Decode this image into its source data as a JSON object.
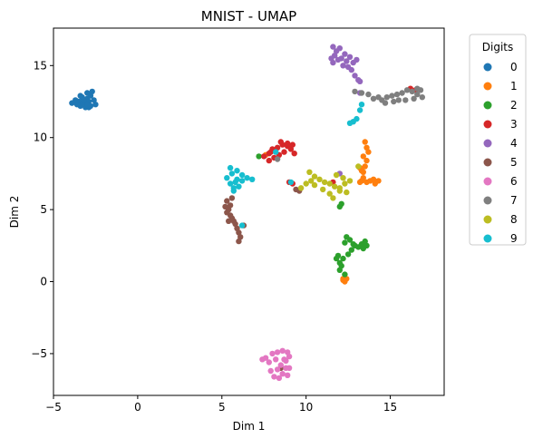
{
  "chart_data": {
    "type": "scatter",
    "title": "MNIST - UMAP",
    "xlabel": "Dim 1",
    "ylabel": "Dim 2",
    "xlim": [
      -5,
      18.2
    ],
    "ylim": [
      -7.9,
      17.6
    ],
    "xticks": [
      -5,
      0,
      5,
      10,
      15
    ],
    "yticks": [
      -5,
      0,
      5,
      10,
      15
    ],
    "grid": false,
    "legend": {
      "title": "Digits",
      "placement": "outside-right"
    },
    "series": [
      {
        "name": "0",
        "color": "#1f77b4",
        "points": [
          [
            -3.5,
            12.5
          ],
          [
            -3.3,
            12.8
          ],
          [
            -3.0,
            13.1
          ],
          [
            -2.8,
            12.9
          ],
          [
            -2.6,
            12.6
          ],
          [
            -2.8,
            12.2
          ],
          [
            -3.1,
            12.1
          ],
          [
            -3.4,
            12.2
          ],
          [
            -3.9,
            12.4
          ],
          [
            -3.7,
            12.6
          ],
          [
            -3.2,
            12.4
          ],
          [
            -2.9,
            12.5
          ],
          [
            -2.7,
            13.2
          ],
          [
            -3.0,
            12.7
          ],
          [
            -3.4,
            12.9
          ],
          [
            -3.6,
            12.3
          ],
          [
            -2.5,
            12.3
          ],
          [
            -2.9,
            12.1
          ],
          [
            -3.2,
            12.6
          ],
          [
            -3.0,
            12.3
          ]
        ]
      },
      {
        "name": "1",
        "color": "#ff7f0e",
        "points": [
          [
            13.5,
            9.7
          ],
          [
            13.6,
            9.3
          ],
          [
            13.7,
            9.0
          ],
          [
            13.4,
            8.7
          ],
          [
            13.6,
            8.4
          ],
          [
            13.5,
            8.0
          ],
          [
            13.4,
            7.6
          ],
          [
            13.3,
            7.0
          ],
          [
            13.6,
            6.9
          ],
          [
            13.8,
            7.0
          ],
          [
            14.1,
            6.8
          ],
          [
            14.3,
            7.0
          ],
          [
            13.2,
            6.9
          ],
          [
            13.4,
            7.2
          ],
          [
            14.0,
            7.1
          ],
          [
            12.2,
            0.1
          ],
          [
            12.4,
            0.2
          ],
          [
            12.3,
            0.0
          ],
          [
            12.2,
            0.2
          ],
          [
            13.3,
            7.7
          ],
          [
            7.6,
            8.8
          ],
          [
            13.2,
            7.9
          ]
        ]
      },
      {
        "name": "2",
        "color": "#2ca02c",
        "points": [
          [
            13.3,
            2.6
          ],
          [
            13.5,
            2.8
          ],
          [
            13.1,
            2.4
          ],
          [
            13.4,
            2.3
          ],
          [
            12.9,
            2.5
          ],
          [
            12.6,
            2.9
          ],
          [
            12.4,
            3.1
          ],
          [
            12.3,
            2.7
          ],
          [
            12.7,
            2.2
          ],
          [
            12.5,
            1.9
          ],
          [
            12.2,
            1.6
          ],
          [
            12.0,
            1.3
          ],
          [
            11.8,
            1.6
          ],
          [
            12.1,
            1.1
          ],
          [
            12.3,
            0.5
          ],
          [
            12.0,
            0.8
          ],
          [
            12.8,
            2.6
          ],
          [
            13.6,
            2.5
          ],
          [
            12.0,
            5.2
          ],
          [
            12.1,
            5.4
          ],
          [
            7.2,
            8.7
          ],
          [
            11.9,
            1.8
          ]
        ]
      },
      {
        "name": "3",
        "color": "#d62728",
        "points": [
          [
            7.5,
            8.7
          ],
          [
            7.8,
            8.9
          ],
          [
            8.0,
            9.2
          ],
          [
            8.3,
            9.3
          ],
          [
            8.6,
            9.5
          ],
          [
            8.9,
            9.4
          ],
          [
            9.1,
            9.2
          ],
          [
            9.3,
            8.9
          ],
          [
            8.7,
            9.0
          ],
          [
            8.4,
            8.8
          ],
          [
            8.1,
            8.6
          ],
          [
            7.8,
            8.4
          ],
          [
            8.9,
            9.6
          ],
          [
            9.2,
            9.5
          ],
          [
            8.5,
            9.7
          ],
          [
            7.9,
            9.0
          ],
          [
            9.0,
            6.9
          ],
          [
            9.2,
            6.8
          ],
          [
            11.6,
            6.9
          ],
          [
            16.2,
            13.4
          ],
          [
            16.5,
            13.3
          ]
        ]
      },
      {
        "name": "4",
        "color": "#9467bd",
        "points": [
          [
            11.6,
            16.3
          ],
          [
            11.8,
            16.0
          ],
          [
            11.7,
            15.7
          ],
          [
            11.9,
            15.4
          ],
          [
            11.6,
            15.2
          ],
          [
            12.1,
            15.5
          ],
          [
            12.4,
            15.3
          ],
          [
            12.6,
            15.6
          ],
          [
            12.8,
            15.2
          ],
          [
            13.0,
            15.4
          ],
          [
            12.3,
            15.8
          ],
          [
            12.0,
            16.2
          ],
          [
            12.5,
            14.9
          ],
          [
            12.7,
            14.7
          ],
          [
            12.9,
            14.3
          ],
          [
            13.1,
            14.0
          ],
          [
            11.5,
            15.5
          ],
          [
            12.2,
            15.0
          ],
          [
            13.2,
            13.9
          ],
          [
            12.0,
            7.5
          ],
          [
            13.2,
            13.1
          ]
        ]
      },
      {
        "name": "5",
        "color": "#8c564b",
        "points": [
          [
            5.2,
            5.2
          ],
          [
            5.3,
            4.8
          ],
          [
            5.5,
            4.6
          ],
          [
            5.4,
            5.0
          ],
          [
            5.6,
            4.4
          ],
          [
            5.8,
            4.0
          ],
          [
            5.9,
            3.7
          ],
          [
            6.0,
            3.4
          ],
          [
            6.1,
            3.1
          ],
          [
            5.7,
            4.2
          ],
          [
            5.5,
            5.3
          ],
          [
            5.3,
            5.6
          ],
          [
            5.6,
            5.8
          ],
          [
            5.4,
            4.2
          ],
          [
            6.0,
            2.8
          ],
          [
            6.3,
            3.9
          ],
          [
            9.4,
            6.4
          ],
          [
            9.6,
            6.3
          ],
          [
            8.5,
            -6.0
          ]
        ]
      },
      {
        "name": "6",
        "color": "#e377c2",
        "points": [
          [
            8.0,
            -5.0
          ],
          [
            8.3,
            -4.9
          ],
          [
            8.6,
            -4.8
          ],
          [
            8.9,
            -4.9
          ],
          [
            9.0,
            -5.2
          ],
          [
            8.8,
            -5.5
          ],
          [
            8.5,
            -5.8
          ],
          [
            8.3,
            -6.1
          ],
          [
            8.6,
            -6.4
          ],
          [
            8.9,
            -6.5
          ],
          [
            9.0,
            -6.0
          ],
          [
            8.1,
            -6.6
          ],
          [
            7.8,
            -5.6
          ],
          [
            7.6,
            -5.3
          ],
          [
            7.9,
            -6.2
          ],
          [
            8.4,
            -6.7
          ],
          [
            8.7,
            -5.4
          ],
          [
            8.2,
            -5.4
          ],
          [
            8.8,
            -6.0
          ],
          [
            7.4,
            -5.4
          ]
        ]
      },
      {
        "name": "7",
        "color": "#7f7f7f",
        "points": [
          [
            14.5,
            12.6
          ],
          [
            14.8,
            12.8
          ],
          [
            15.1,
            12.9
          ],
          [
            15.4,
            13.0
          ],
          [
            15.7,
            13.1
          ],
          [
            16.0,
            13.3
          ],
          [
            16.3,
            13.2
          ],
          [
            16.6,
            13.0
          ],
          [
            16.9,
            12.8
          ],
          [
            16.8,
            13.3
          ],
          [
            16.4,
            12.7
          ],
          [
            15.9,
            12.6
          ],
          [
            15.5,
            12.6
          ],
          [
            15.2,
            12.5
          ],
          [
            14.7,
            12.4
          ],
          [
            14.3,
            12.8
          ],
          [
            13.7,
            13.0
          ],
          [
            13.3,
            13.1
          ],
          [
            12.9,
            13.2
          ],
          [
            16.6,
            13.4
          ],
          [
            14.0,
            12.7
          ],
          [
            8.3,
            8.5
          ]
        ]
      },
      {
        "name": "8",
        "color": "#bcbd22",
        "points": [
          [
            10.2,
            7.6
          ],
          [
            10.5,
            7.3
          ],
          [
            10.8,
            7.1
          ],
          [
            11.1,
            6.9
          ],
          [
            11.4,
            6.8
          ],
          [
            11.7,
            6.6
          ],
          [
            12.0,
            6.5
          ],
          [
            12.3,
            6.8
          ],
          [
            12.6,
            7.0
          ],
          [
            12.2,
            7.2
          ],
          [
            11.8,
            7.4
          ],
          [
            10.5,
            6.7
          ],
          [
            10.3,
            7.0
          ],
          [
            11.0,
            6.4
          ],
          [
            12.4,
            6.2
          ],
          [
            11.6,
            5.8
          ],
          [
            11.4,
            6.1
          ],
          [
            12.0,
            6.3
          ],
          [
            13.1,
            8.0
          ],
          [
            9.7,
            6.5
          ],
          [
            10.0,
            6.8
          ]
        ]
      },
      {
        "name": "9",
        "color": "#17becf",
        "points": [
          [
            5.3,
            7.2
          ],
          [
            5.6,
            7.5
          ],
          [
            5.9,
            7.7
          ],
          [
            6.2,
            7.4
          ],
          [
            6.5,
            7.2
          ],
          [
            6.2,
            7.0
          ],
          [
            5.8,
            6.9
          ],
          [
            5.5,
            6.8
          ],
          [
            5.7,
            6.5
          ],
          [
            6.0,
            6.6
          ],
          [
            5.5,
            7.9
          ],
          [
            5.9,
            7.1
          ],
          [
            6.8,
            7.1
          ],
          [
            5.7,
            6.3
          ],
          [
            13.3,
            12.3
          ],
          [
            13.2,
            11.9
          ],
          [
            13.0,
            11.3
          ],
          [
            12.8,
            11.1
          ],
          [
            12.6,
            11.0
          ],
          [
            9.1,
            6.9
          ],
          [
            8.2,
            9.0
          ],
          [
            6.2,
            3.9
          ]
        ]
      }
    ]
  }
}
